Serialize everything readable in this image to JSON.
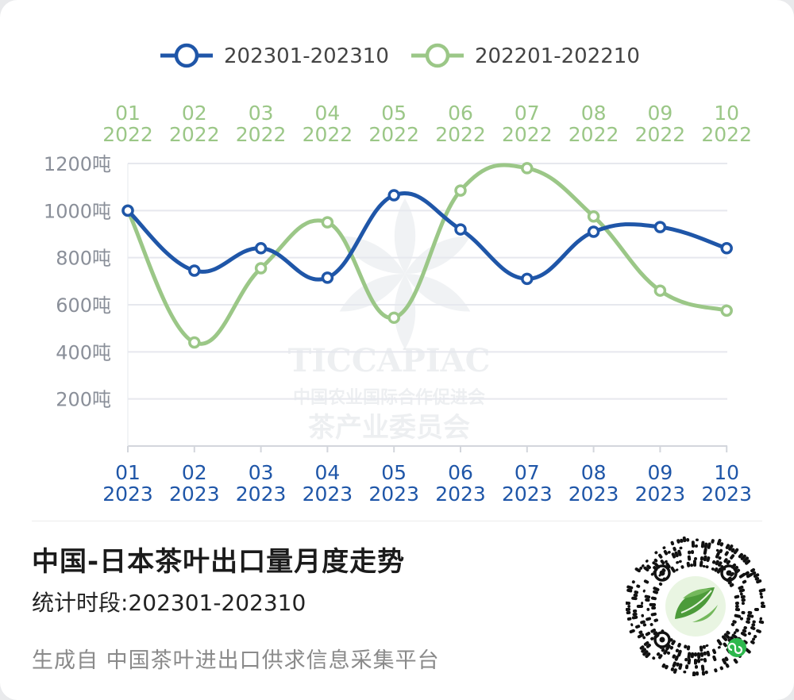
{
  "chart_data": {
    "type": "line",
    "top_axis_labels": [
      [
        "01",
        "2022"
      ],
      [
        "02",
        "2022"
      ],
      [
        "03",
        "2022"
      ],
      [
        "04",
        "2022"
      ],
      [
        "05",
        "2022"
      ],
      [
        "06",
        "2022"
      ],
      [
        "07",
        "2022"
      ],
      [
        "08",
        "2022"
      ],
      [
        "09",
        "2022"
      ],
      [
        "10",
        "2022"
      ]
    ],
    "bottom_axis_labels": [
      [
        "01",
        "2023"
      ],
      [
        "02",
        "2023"
      ],
      [
        "03",
        "2023"
      ],
      [
        "04",
        "2023"
      ],
      [
        "05",
        "2023"
      ],
      [
        "06",
        "2023"
      ],
      [
        "07",
        "2023"
      ],
      [
        "08",
        "2023"
      ],
      [
        "09",
        "2023"
      ],
      [
        "10",
        "2023"
      ]
    ],
    "y_ticks": [
      {
        "value": 200,
        "label": "200吨"
      },
      {
        "value": 400,
        "label": "400吨"
      },
      {
        "value": 600,
        "label": "600吨"
      },
      {
        "value": 800,
        "label": "800吨"
      },
      {
        "value": 1000,
        "label": "1000吨"
      },
      {
        "value": 1200,
        "label": "1200吨"
      }
    ],
    "ylim": [
      0,
      1200
    ],
    "grid": true,
    "legend_position": "top",
    "series": [
      {
        "name": "202301-202310",
        "color": "#1f56a8",
        "values": [
          1000,
          745,
          840,
          715,
          1065,
          920,
          710,
          910,
          930,
          840
        ]
      },
      {
        "name": "202201-202210",
        "color": "#9bc787",
        "values": [
          1000,
          440,
          755,
          950,
          545,
          1085,
          1180,
          975,
          660,
          575
        ]
      }
    ],
    "watermark": {
      "line1": "TICCAPIAC",
      "line2": "中国农业国际合作促进会",
      "line3": "茶产业委员会"
    }
  },
  "footer": {
    "title": "中国-日本茶叶出口量月度走势",
    "period": "统计时段:202301-202310",
    "source": "生成自 中国茶叶进出口供求信息采集平台"
  },
  "colors": {
    "blue": "#1f56a8",
    "green": "#9bc787",
    "grid": "#e6e8ee",
    "axis_text": "#8a8f99"
  }
}
